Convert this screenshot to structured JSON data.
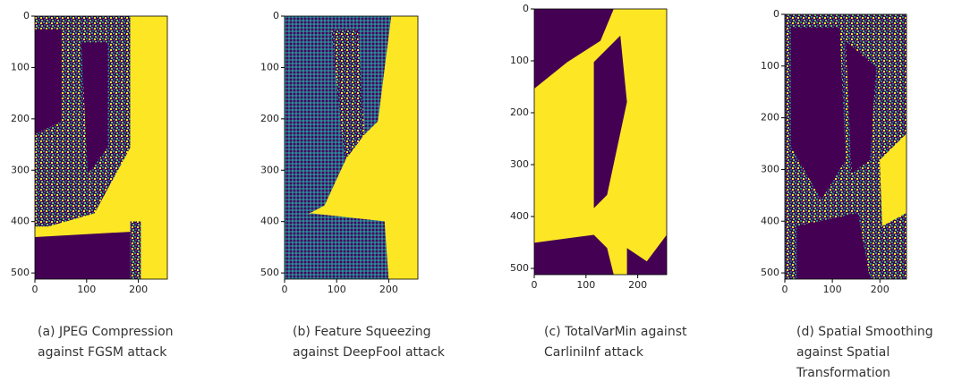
{
  "panels": [
    {
      "caption": [
        "(a) JPEG Compression",
        "against FGSM attack"
      ],
      "xlim": [
        0,
        256
      ],
      "ylim": [
        0,
        512
      ],
      "xticks": [
        0,
        100,
        200
      ],
      "yticks": [
        0,
        100,
        200,
        300,
        400,
        500
      ]
    },
    {
      "caption": [
        "(b) Feature Squeezing",
        "against DeepFool attack"
      ],
      "xlim": [
        0,
        256
      ],
      "ylim": [
        0,
        512
      ],
      "xticks": [
        0,
        100,
        200
      ],
      "yticks": [
        0,
        100,
        200,
        300,
        400,
        500
      ]
    },
    {
      "caption": [
        "(c) TotalVarMin against",
        "CarliniInf attack"
      ],
      "xlim": [
        0,
        256
      ],
      "ylim": [
        0,
        512
      ],
      "xticks": [
        0,
        100,
        200
      ],
      "yticks": [
        0,
        100,
        200,
        300,
        400,
        500
      ]
    },
    {
      "caption": [
        "(d) Spatial Smoothing",
        "against Spatial",
        "Transformation"
      ],
      "xlim": [
        0,
        256
      ],
      "ylim": [
        0,
        512
      ],
      "xticks": [
        0,
        100,
        200
      ],
      "yticks": [
        0,
        100,
        200,
        300,
        400,
        500
      ]
    }
  ]
}
